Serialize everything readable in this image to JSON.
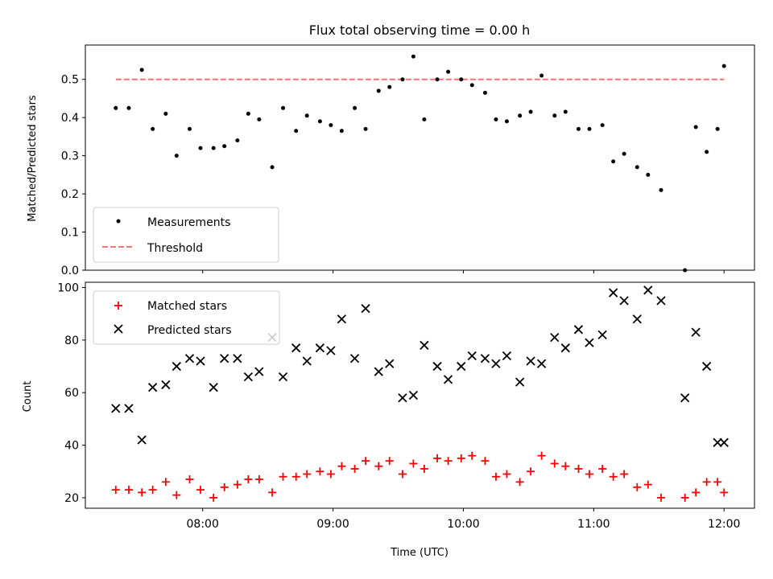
{
  "chart_data": [
    {
      "type": "scatter",
      "title": "Flux total observing time = 0.00 h",
      "ylabel": "Matched/Predicted stars",
      "xlabel": "",
      "ylim": [
        0,
        0.59
      ],
      "yticks": [
        0.0,
        0.1,
        0.2,
        0.3,
        0.4,
        0.5
      ],
      "ytick_labels": [
        "0.0",
        "0.1",
        "0.2",
        "0.3",
        "0.4",
        "0.5"
      ],
      "x_unit": "hours UTC",
      "xlim": [
        "07:06",
        "12:14"
      ],
      "grid": false,
      "legend_position": "lower-left",
      "legend": [
        {
          "label": "Measurements",
          "marker": "dot",
          "color": "#000000"
        },
        {
          "label": "Threshold",
          "marker": "dashed-line",
          "color": "#ff7070"
        }
      ],
      "threshold": {
        "value": 0.5,
        "x_start": "07:20",
        "x_end": "12:00"
      },
      "series": [
        {
          "name": "Measurements",
          "color": "#000000",
          "x": [
            "07:20",
            "07:26",
            "07:32",
            "07:37",
            "07:43",
            "07:48",
            "07:54",
            "07:59",
            "08:05",
            "08:10",
            "08:16",
            "08:21",
            "08:26",
            "08:32",
            "08:37",
            "08:43",
            "08:48",
            "08:54",
            "08:59",
            "09:04",
            "09:10",
            "09:15",
            "09:21",
            "09:26",
            "09:32",
            "09:37",
            "09:42",
            "09:48",
            "09:53",
            "09:59",
            "10:04",
            "10:10",
            "10:15",
            "10:20",
            "10:26",
            "10:31",
            "10:36",
            "10:42",
            "10:47",
            "10:53",
            "10:58",
            "11:04",
            "11:09",
            "11:14",
            "11:20",
            "11:25",
            "11:31",
            "11:42",
            "11:47",
            "11:52",
            "11:57",
            "12:00"
          ],
          "y": [
            0.425,
            0.425,
            0.525,
            0.37,
            0.41,
            0.3,
            0.37,
            0.32,
            0.32,
            0.325,
            0.34,
            0.41,
            0.395,
            0.27,
            0.425,
            0.365,
            0.405,
            0.39,
            0.38,
            0.365,
            0.425,
            0.37,
            0.47,
            0.48,
            0.5,
            0.56,
            0.395,
            0.5,
            0.52,
            0.5,
            0.485,
            0.465,
            0.395,
            0.39,
            0.405,
            0.415,
            0.51,
            0.405,
            0.415,
            0.37,
            0.37,
            0.38,
            0.285,
            0.305,
            0.27,
            0.25,
            0.21,
            0.0,
            0.375,
            0.31,
            0.37,
            0.535
          ]
        }
      ],
      "x_tick_labels_visible": false
    },
    {
      "type": "scatter",
      "title": "",
      "ylabel": "Count",
      "xlabel": "Time (UTC)",
      "ylim": [
        16,
        102
      ],
      "yticks": [
        20,
        40,
        60,
        80,
        100
      ],
      "ytick_labels": [
        "20",
        "40",
        "60",
        "80",
        "100"
      ],
      "x_unit": "hours UTC",
      "xlim": [
        "07:06",
        "12:14"
      ],
      "xticks": [
        "08:00",
        "09:00",
        "10:00",
        "11:00",
        "12:00"
      ],
      "xtick_labels": [
        "08:00",
        "09:00",
        "10:00",
        "11:00",
        "12:00"
      ],
      "grid": false,
      "legend_position": "upper-left",
      "legend": [
        {
          "label": "Matched stars",
          "marker": "plus",
          "color": "#ff0000"
        },
        {
          "label": "Predicted stars",
          "marker": "x",
          "color": "#000000"
        }
      ],
      "series": [
        {
          "name": "Matched stars",
          "color": "#ff0000",
          "marker": "plus",
          "x": [
            "07:20",
            "07:26",
            "07:32",
            "07:37",
            "07:43",
            "07:48",
            "07:54",
            "07:59",
            "08:05",
            "08:10",
            "08:16",
            "08:21",
            "08:26",
            "08:32",
            "08:37",
            "08:43",
            "08:48",
            "08:54",
            "08:59",
            "09:04",
            "09:10",
            "09:15",
            "09:21",
            "09:26",
            "09:32",
            "09:37",
            "09:42",
            "09:48",
            "09:53",
            "09:59",
            "10:04",
            "10:10",
            "10:15",
            "10:20",
            "10:26",
            "10:31",
            "10:36",
            "10:42",
            "10:47",
            "10:53",
            "10:58",
            "11:04",
            "11:09",
            "11:14",
            "11:20",
            "11:25",
            "11:31",
            "11:42",
            "11:47",
            "11:52",
            "11:57",
            "12:00"
          ],
          "y": [
            23,
            23,
            22,
            23,
            26,
            21,
            27,
            23,
            20,
            24,
            25,
            27,
            27,
            22,
            28,
            28,
            29,
            30,
            29,
            32,
            31,
            34,
            32,
            34,
            29,
            33,
            31,
            35,
            34,
            35,
            36,
            34,
            28,
            29,
            26,
            30,
            36,
            33,
            32,
            31,
            29,
            31,
            28,
            29,
            24,
            25,
            20,
            20,
            22,
            26,
            26,
            22
          ]
        },
        {
          "name": "Predicted stars",
          "color": "#000000",
          "marker": "x",
          "x": [
            "07:20",
            "07:26",
            "07:32",
            "07:37",
            "07:43",
            "07:48",
            "07:54",
            "07:59",
            "08:05",
            "08:10",
            "08:16",
            "08:21",
            "08:26",
            "08:32",
            "08:37",
            "08:43",
            "08:48",
            "08:54",
            "08:59",
            "09:04",
            "09:10",
            "09:15",
            "09:21",
            "09:26",
            "09:32",
            "09:37",
            "09:42",
            "09:48",
            "09:53",
            "09:59",
            "10:04",
            "10:10",
            "10:15",
            "10:20",
            "10:26",
            "10:31",
            "10:36",
            "10:42",
            "10:47",
            "10:53",
            "10:58",
            "11:04",
            "11:09",
            "11:14",
            "11:20",
            "11:25",
            "11:31",
            "11:42",
            "11:47",
            "11:52",
            "11:57",
            "12:00"
          ],
          "y": [
            54,
            54,
            42,
            62,
            63,
            70,
            73,
            72,
            62,
            73,
            73,
            66,
            68,
            81,
            66,
            77,
            72,
            77,
            76,
            88,
            73,
            92,
            68,
            71,
            58,
            59,
            78,
            70,
            65,
            70,
            74,
            73,
            71,
            74,
            64,
            72,
            71,
            81,
            77,
            84,
            79,
            82,
            98,
            95,
            88,
            99,
            95,
            58,
            83,
            70,
            41,
            41
          ]
        }
      ]
    }
  ]
}
